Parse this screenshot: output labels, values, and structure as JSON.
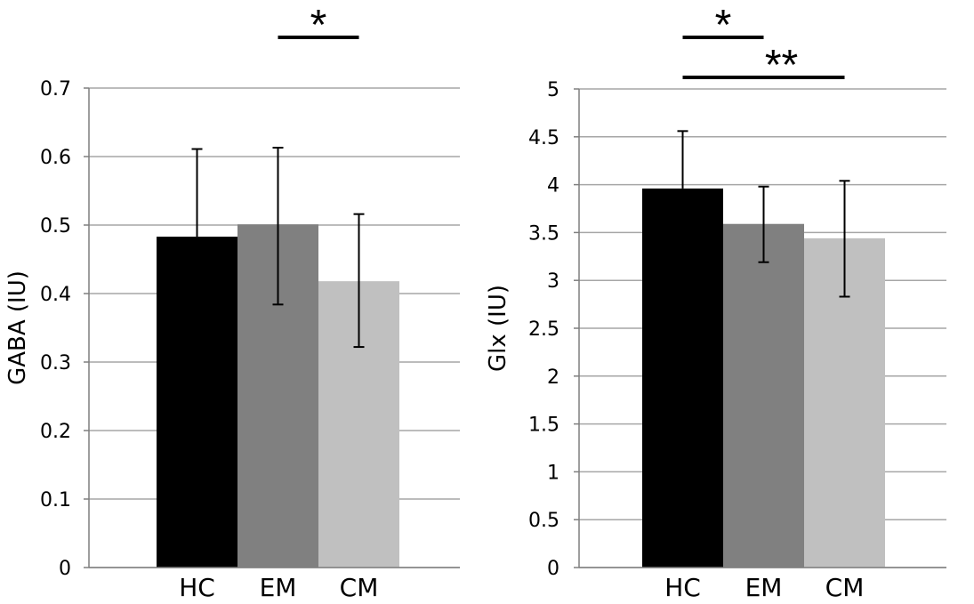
{
  "chart_data": [
    {
      "type": "bar",
      "title": "",
      "xlabel": "",
      "ylabel": "GABA (IU)",
      "categories": [
        "HC",
        "EM",
        "CM"
      ],
      "values": [
        0.483,
        0.501,
        0.418
      ],
      "error_upper": [
        0.611,
        0.613,
        0.516
      ],
      "error_lower": [
        null,
        0.384,
        0.322
      ],
      "ylim": [
        0,
        0.7
      ],
      "yticks": [
        "0",
        "0.1",
        "0.2",
        "0.3",
        "0.4",
        "0.5",
        "0.6",
        "0.7"
      ],
      "grid": true,
      "significance": [
        {
          "from": "EM",
          "to": "CM",
          "label": "*"
        }
      ]
    },
    {
      "type": "bar",
      "title": "",
      "xlabel": "",
      "ylabel": "Glx (IU)",
      "categories": [
        "HC",
        "EM",
        "CM"
      ],
      "values": [
        3.96,
        3.59,
        3.44
      ],
      "error_upper": [
        4.56,
        3.98,
        4.04
      ],
      "error_lower": [
        null,
        3.19,
        2.83
      ],
      "ylim": [
        0,
        5
      ],
      "yticks": [
        "0",
        "0.5",
        "1",
        "1.5",
        "2",
        "2.5",
        "3",
        "3.5",
        "4",
        "4.5",
        "5"
      ],
      "grid": true,
      "significance": [
        {
          "from": "HC",
          "to": "EM",
          "label": "*"
        },
        {
          "from": "HC",
          "to": "CM",
          "label": "**"
        }
      ]
    }
  ],
  "colors": {
    "HC": "#000000",
    "EM": "#808080",
    "CM": "#c0c0c0",
    "grid": "#a6a6a6",
    "axis": "#7f7f7f"
  }
}
